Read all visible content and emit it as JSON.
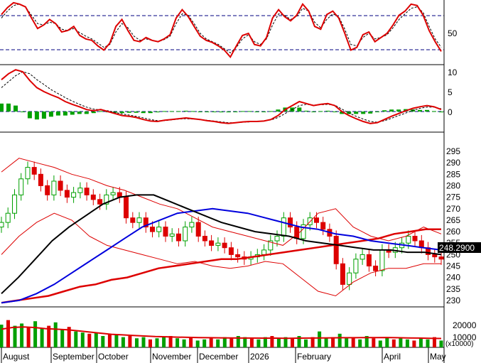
{
  "chart_data": [
    {
      "type": "line",
      "panel": "oscillator",
      "yticks": [
        50
      ],
      "guides": [
        80,
        20
      ],
      "series": [
        {
          "color": "#dd0000",
          "style": "solid",
          "values": [
            75,
            85,
            92,
            90,
            86,
            70,
            55,
            60,
            68,
            62,
            50,
            52,
            58,
            45,
            40,
            38,
            30,
            24,
            34,
            58,
            68,
            52,
            38,
            36,
            42,
            38,
            36,
            40,
            46,
            70,
            82,
            72,
            58,
            44,
            38,
            35,
            30,
            24,
            14,
            30,
            45,
            48,
            32,
            30,
            42,
            70,
            82,
            72,
            66,
            74,
            90,
            80,
            58,
            54,
            75,
            80,
            70,
            48,
            24,
            28,
            46,
            50,
            36,
            42,
            48,
            60,
            74,
            80,
            90,
            88,
            74,
            52,
            36,
            22
          ]
        },
        {
          "color": "#000000",
          "style": "dashed",
          "values": [
            70,
            80,
            88,
            90,
            86,
            74,
            62,
            60,
            64,
            62,
            54,
            52,
            55,
            49,
            44,
            40,
            34,
            28,
            32,
            50,
            62,
            56,
            44,
            38,
            40,
            38,
            36,
            39,
            44,
            62,
            76,
            74,
            62,
            48,
            40,
            36,
            32,
            26,
            20,
            28,
            40,
            46,
            36,
            32,
            40,
            60,
            76,
            74,
            68,
            72,
            84,
            80,
            64,
            56,
            68,
            76,
            72,
            54,
            32,
            30,
            42,
            48,
            40,
            42,
            46,
            56,
            68,
            76,
            84,
            86,
            78,
            58,
            40,
            28
          ]
        }
      ]
    },
    {
      "type": "bar",
      "panel": "macd",
      "yticks": [
        10,
        5,
        0
      ],
      "series": [
        {
          "color": "#dd0000",
          "style": "solid",
          "values": [
            8,
            9.5,
            10.5,
            10,
            7.8,
            6,
            5,
            4.2,
            3.5,
            2.5,
            1.8,
            1.2,
            0.5,
            0.2,
            0.5,
            0,
            -0.5,
            -1,
            -1.2,
            -1.5,
            -2,
            -2.4,
            -2.5,
            -2.2,
            -2,
            -1.8,
            -1.6,
            -1.8,
            -2,
            -2.3,
            -2.5,
            -2.8,
            -3,
            -2.8,
            -2.6,
            -2.5,
            -2.5,
            -2.4,
            -2,
            -1,
            0.5,
            1.5,
            2.5,
            2,
            1.5,
            1.8,
            2,
            1.5,
            0,
            -1,
            -1.8,
            -2.5,
            -3,
            -2.8,
            -2,
            -1.2,
            -0.5,
            0.2,
            0.8,
            1.2,
            1.5,
            1.2,
            0.5
          ]
        },
        {
          "color": "#000000",
          "style": "dashed",
          "values": [
            6,
            7.5,
            9,
            10,
            9.5,
            8,
            6.8,
            5.5,
            4.5,
            3.5,
            2.6,
            1.8,
            1.1,
            0.6,
            0.4,
            0.2,
            -0.2,
            -0.6,
            -0.9,
            -1.2,
            -1.6,
            -2,
            -2.3,
            -2.3,
            -2.1,
            -1.9,
            -1.8,
            -1.9,
            -2,
            -2.2,
            -2.4,
            -2.6,
            -2.8,
            -2.8,
            -2.7,
            -2.6,
            -2.5,
            -2.4,
            -2.1,
            -1.5,
            -0.5,
            0.5,
            1.5,
            1.8,
            1.6,
            1.7,
            1.8,
            1.6,
            0.6,
            -0.4,
            -1.2,
            -1.9,
            -2.5,
            -2.7,
            -2.3,
            -1.7,
            -1,
            -0.4,
            0.3,
            0.8,
            1.1,
            1.1,
            0.7
          ]
        },
        {
          "color": "#00a000",
          "style": "histogram",
          "values": [
            2,
            2,
            1.5,
            0,
            -1.7,
            -2,
            -1.8,
            -1.3,
            -1,
            -1,
            -0.8,
            -0.6,
            -0.6,
            -0.4,
            0.1,
            -0.2,
            -0.3,
            -0.4,
            -0.3,
            -0.3,
            -0.4,
            -0.4,
            -0.2,
            0.1,
            0.1,
            0.1,
            0.2,
            0.1,
            0,
            -0.1,
            -0.1,
            -0.2,
            -0.2,
            0,
            0.1,
            0.1,
            0,
            0,
            0.1,
            0.5,
            1,
            1,
            1,
            0.2,
            -0.1,
            0.1,
            0.2,
            -0.1,
            -0.6,
            -0.6,
            -0.6,
            -0.6,
            -0.5,
            -0.1,
            0.3,
            0.5,
            0.5,
            0.6,
            0.5,
            0.4,
            0.4,
            0.1,
            -0.2
          ]
        }
      ]
    },
    {
      "type": "line",
      "panel": "price",
      "ylim": [
        225,
        296
      ],
      "yticks": [
        295,
        290,
        285,
        280,
        275,
        270,
        265,
        260,
        255,
        250,
        245,
        240,
        235,
        230
      ],
      "last_value": "248.2900",
      "series": [
        {
          "color": "#00a000",
          "style": "candle-close",
          "values": [
            264,
            268,
            276,
            283,
            288,
            285,
            280,
            276,
            282,
            278,
            275,
            277,
            279,
            276,
            274,
            272,
            276,
            277,
            275,
            266,
            264,
            266,
            262,
            260,
            262,
            258,
            259,
            256,
            262,
            264,
            258,
            256,
            254,
            255,
            253,
            250,
            249,
            248,
            249,
            250,
            252,
            256,
            258,
            266,
            262,
            257,
            263,
            266,
            264,
            261,
            258,
            246,
            237,
            242,
            248,
            250,
            245,
            243,
            252,
            251,
            253,
            255,
            258,
            256,
            253,
            250,
            249,
            248
          ]
        },
        {
          "color": "#000000",
          "style": "solid",
          "values": [
            233,
            240,
            248,
            256,
            262,
            267,
            272,
            275,
            276,
            276,
            273,
            270,
            267,
            264,
            262,
            260,
            259,
            258,
            256,
            255,
            254,
            253,
            252,
            252,
            251,
            251,
            250
          ]
        },
        {
          "color": "#0000dd",
          "style": "solid",
          "values": [
            229,
            230,
            233,
            237,
            242,
            247,
            252,
            257,
            262,
            265,
            268,
            269,
            270,
            269,
            268,
            266,
            264,
            262,
            261,
            259,
            258,
            256,
            255,
            254,
            253,
            252
          ]
        },
        {
          "color": "#dd0000",
          "style": "solid",
          "values": [
            229,
            230,
            231,
            232,
            234,
            236,
            237,
            239,
            240,
            242,
            244,
            245,
            246,
            247,
            248,
            248,
            249,
            250,
            251,
            252,
            253,
            254,
            255,
            256,
            257,
            259,
            260,
            261,
            261
          ]
        },
        {
          "color": "#dd0000",
          "style": "thin-band-upper",
          "values": [
            286,
            292,
            290,
            288,
            285,
            283,
            280,
            278,
            275,
            272,
            270,
            266,
            262,
            260,
            258,
            256,
            254,
            260,
            268,
            270,
            262,
            258,
            256,
            258,
            262,
            259
          ]
        },
        {
          "color": "#dd0000",
          "style": "thin-band-lower",
          "values": [
            250,
            258,
            264,
            268,
            265,
            258,
            254,
            252,
            250,
            248,
            246,
            247,
            245,
            244,
            245,
            247,
            246,
            240,
            234,
            232,
            238,
            242,
            244,
            244,
            246,
            246
          ]
        }
      ]
    },
    {
      "type": "bar",
      "panel": "volume",
      "unit": "(x10000)",
      "yticks": [
        20000,
        10000
      ],
      "values": [
        20000,
        24000,
        19000,
        21000,
        18000,
        23000,
        17000,
        19000,
        22000,
        16000,
        18000,
        14000,
        13000,
        12000,
        13000,
        10000,
        12000,
        11000,
        9000,
        10000,
        8000,
        9000,
        7000,
        8000,
        9000,
        10000,
        8000,
        7000,
        9000,
        6000,
        7000,
        8000,
        7000,
        9000,
        8000,
        10000,
        9000,
        8000,
        7000,
        9000,
        10000,
        8000,
        9000,
        8000,
        10000,
        7000,
        9000,
        14000,
        8000,
        9000,
        12000,
        8000,
        9000,
        7000,
        10000,
        8000,
        6000,
        9000,
        7000,
        8000,
        7000,
        6000,
        8000,
        7000,
        9000,
        6000
      ],
      "ma_values": [
        16000,
        17500,
        18000,
        17500,
        16500,
        16000,
        15500,
        14500,
        13500,
        12500,
        11500,
        11000,
        10500,
        10000,
        9500,
        9300,
        9000,
        8800,
        8600,
        8500,
        8400,
        8300,
        8200,
        8200,
        8100,
        8100,
        8000,
        8100,
        8200,
        8300,
        8400,
        8500,
        8500,
        8600,
        8600,
        8700,
        8500,
        8300,
        8200,
        8000,
        7800
      ]
    },
    {
      "type": "axis",
      "months": [
        "August",
        "September",
        "October",
        "November",
        "December",
        "2026",
        "February",
        "April",
        "May"
      ]
    }
  ]
}
